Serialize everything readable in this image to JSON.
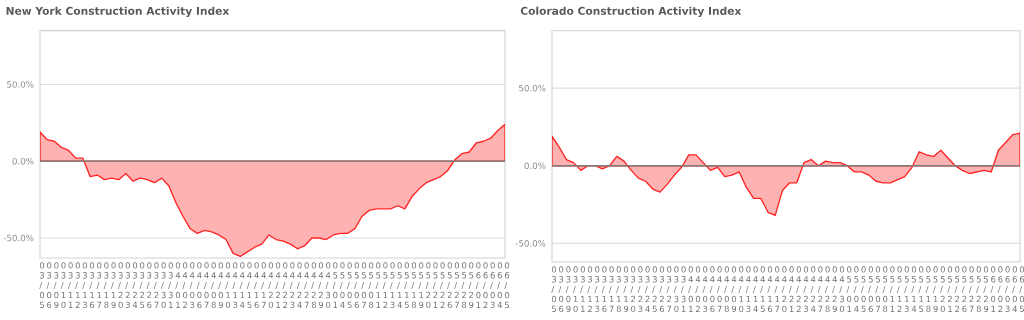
{
  "chart_data": [
    {
      "type": "area",
      "title": "New York Construction Activity Index",
      "categories": [
        "03/05",
        "03/06",
        "03/09",
        "03/10",
        "03/11",
        "03/12",
        "03/13",
        "03/16",
        "03/17",
        "03/18",
        "03/19",
        "03/20",
        "03/23",
        "03/24",
        "03/25",
        "03/26",
        "03/27",
        "03/30",
        "03/31",
        "04/01",
        "04/02",
        "04/03",
        "04/06",
        "04/07",
        "04/08",
        "04/09",
        "04/10",
        "04/13",
        "04/14",
        "04/15",
        "04/16",
        "04/17",
        "04/20",
        "04/21",
        "04/22",
        "04/23",
        "04/24",
        "04/27",
        "04/28",
        "04/29",
        "04/30",
        "05/01",
        "05/04",
        "05/05",
        "05/06",
        "05/07",
        "05/08",
        "05/11",
        "05/12",
        "05/13",
        "05/14",
        "05/15",
        "05/18",
        "05/19",
        "05/20",
        "05/21",
        "05/22",
        "05/26",
        "05/27",
        "05/28",
        "05/29",
        "06/01",
        "06/02",
        "06/03",
        "06/04",
        "06/05"
      ],
      "series": [
        {
          "color": "#ffb2b2",
          "values": [
            19,
            14,
            13,
            9,
            7,
            2,
            2,
            -10,
            -9,
            -12,
            -11,
            -12,
            -8,
            -13,
            -11,
            -12,
            -14,
            -11,
            -16,
            -27,
            -36,
            -44,
            -47,
            -45,
            -46,
            -48,
            -51,
            -60,
            -62,
            -59,
            -56,
            -54,
            -48,
            -51,
            -52,
            -54,
            -57,
            -55,
            -50,
            -50,
            -51,
            -48,
            -47,
            -47,
            -44,
            -36,
            -32,
            -31,
            -31,
            -31,
            -29,
            -31,
            -23,
            -18,
            -14,
            -12,
            -10,
            -6,
            1,
            5,
            6,
            12,
            13,
            15,
            20,
            24
          ]
        }
      ],
      "ylim": [
        -63,
        85
      ],
      "yticks": [
        {
          "value": -50,
          "label": "-50.0%"
        },
        {
          "value": 0,
          "label": "0.0%"
        },
        {
          "value": 50,
          "label": "50.0%"
        }
      ],
      "grid": "y",
      "ref_lines": [
        {
          "axis": "y",
          "value": 0,
          "color": "#7f7f7f"
        }
      ]
    },
    {
      "type": "area",
      "title": "Colorado Construction Activity Index",
      "categories": [
        "03/05",
        "03/06",
        "03/09",
        "03/10",
        "03/11",
        "03/12",
        "03/13",
        "03/16",
        "03/17",
        "03/18",
        "03/19",
        "03/20",
        "03/23",
        "03/24",
        "03/25",
        "03/26",
        "03/27",
        "03/30",
        "03/31",
        "04/01",
        "04/02",
        "04/03",
        "04/06",
        "04/07",
        "04/08",
        "04/09",
        "04/10",
        "04/13",
        "04/14",
        "04/15",
        "04/16",
        "04/17",
        "04/20",
        "04/21",
        "04/22",
        "04/23",
        "04/24",
        "04/27",
        "04/28",
        "04/29",
        "04/30",
        "05/01",
        "05/04",
        "05/05",
        "05/06",
        "05/07",
        "05/08",
        "05/11",
        "05/12",
        "05/13",
        "05/14",
        "05/15",
        "05/18",
        "05/19",
        "05/20",
        "05/21",
        "05/22",
        "05/26",
        "05/27",
        "05/28",
        "05/29",
        "06/01",
        "06/02",
        "06/03",
        "06/04",
        "06/05"
      ],
      "series": [
        {
          "color": "#ffb2b2",
          "values": [
            19,
            12,
            4,
            2,
            -3,
            0,
            0,
            -2,
            0,
            6,
            3,
            -3,
            -8,
            -10,
            -15,
            -17,
            -12,
            -6,
            -1,
            7,
            7,
            2,
            -3,
            -1,
            -7,
            -6,
            -4,
            -14,
            -21,
            -21,
            -30,
            -32,
            -16,
            -11,
            -11,
            2,
            4,
            0,
            3,
            2,
            2,
            0,
            -4,
            -4,
            -6,
            -10,
            -11,
            -11,
            -9,
            -7,
            -1,
            9,
            7,
            6,
            10,
            5,
            0,
            -3,
            -5,
            -4,
            -3,
            -4,
            10,
            15,
            20,
            21
          ]
        }
      ],
      "ylim": [
        -62,
        87
      ],
      "yticks": [
        {
          "value": -50,
          "label": "-50.0%"
        },
        {
          "value": 0,
          "label": "0.0%"
        },
        {
          "value": 50,
          "label": "50.0%"
        }
      ],
      "grid": "y",
      "ref_lines": [
        {
          "axis": "y",
          "value": 0,
          "color": "#7f7f7f"
        }
      ]
    }
  ]
}
